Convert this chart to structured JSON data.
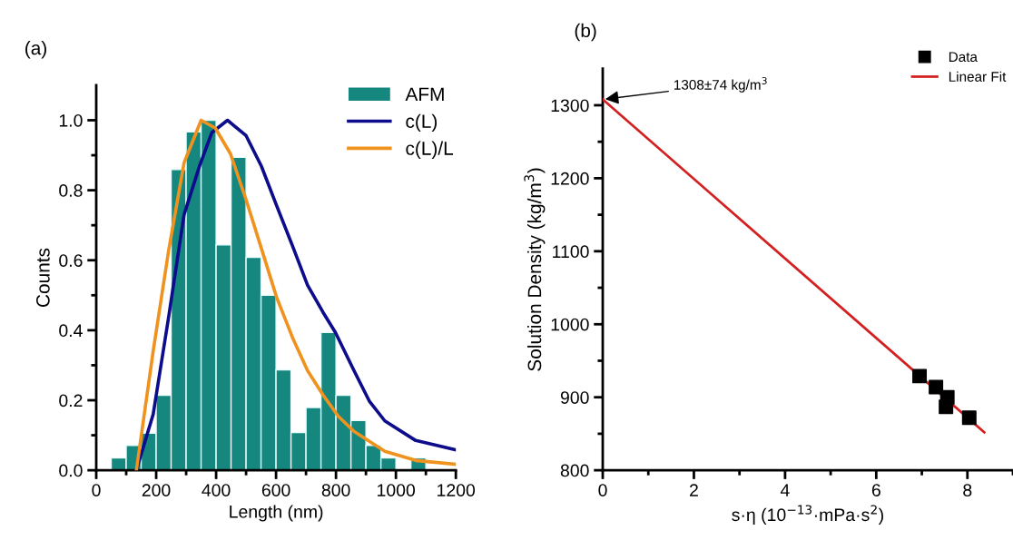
{
  "chart_data": [
    {
      "type": "histogram",
      "title": "(a)",
      "xlabel": "Length (nm)",
      "ylabel": "Counts",
      "bins": [
        50,
        100,
        150,
        200,
        250,
        300,
        350,
        400,
        450,
        500,
        550,
        600,
        650,
        700,
        750,
        800,
        850,
        900,
        950,
        1000,
        1050,
        1100
      ],
      "series": [
        {
          "name": "AFM",
          "color": "#16877f",
          "values": [
            0.035,
            0.071,
            0.106,
            0.214,
            0.859,
            0.967,
            1.0,
            0.644,
            0.894,
            0.608,
            0.5,
            0.287,
            0.108,
            0.179,
            0.394,
            0.214,
            0.142,
            0.071,
            0.035,
            0,
            0.035
          ]
        },
        {
          "name": "c(L)",
          "type": "line",
          "color": "#0c0c8c",
          "x": [
            134,
            190,
            242,
            293,
            345,
            386,
            438,
            500,
            551,
            602,
            654,
            705,
            757,
            798,
            860,
            911,
            963,
            1066,
            1200
          ],
          "values": [
            0,
            0.16,
            0.44,
            0.73,
            0.87,
            0.965,
            1.0,
            0.956,
            0.869,
            0.756,
            0.643,
            0.529,
            0.451,
            0.394,
            0.285,
            0.198,
            0.141,
            0.085,
            0.058
          ]
        },
        {
          "name": "c(L)/L",
          "type": "line",
          "color": "#f0921e",
          "x": [
            134,
            190,
            242,
            293,
            350,
            397,
            448,
            500,
            551,
            602,
            654,
            705,
            757,
            808,
            860,
            963,
            1066,
            1200
          ],
          "values": [
            0,
            0.34,
            0.63,
            0.878,
            1.0,
            0.978,
            0.904,
            0.773,
            0.634,
            0.494,
            0.381,
            0.285,
            0.215,
            0.154,
            0.111,
            0.054,
            0.028,
            0.017
          ]
        }
      ],
      "xlim": [
        0,
        1200
      ],
      "xticks": [
        0,
        {
          "value": 100,
          "label": null
        },
        200,
        {
          "value": 300,
          "label": null
        },
        400,
        {
          "value": 500,
          "label": null
        },
        600,
        {
          "value": 700,
          "label": null
        },
        800,
        {
          "value": 900,
          "label": null
        },
        1000,
        {
          "value": 1100,
          "label": null
        },
        1200
      ],
      "ylim": [
        0,
        1.1
      ],
      "yticks": [
        "0.0",
        {
          "value": 0.1,
          "label": null
        },
        {
          "value": 0.2,
          "label": "0.2"
        },
        {
          "value": 0.3,
          "label": null
        },
        {
          "value": 0.4,
          "label": "0.4"
        },
        {
          "value": 0.5,
          "label": null
        },
        {
          "value": 0.6,
          "label": "0.6"
        },
        {
          "value": 0.7,
          "label": null
        },
        {
          "value": 0.8,
          "label": "0.8"
        },
        {
          "value": 0.9,
          "label": null
        },
        {
          "value": 1.0,
          "label": "1.0"
        }
      ],
      "legend": "top right",
      "grid": false
    },
    {
      "type": "scatter",
      "title": "(b)",
      "xlabel": "s·η (10$^{−13}$·mPa·s$^{2}$)",
      "ylabel": "Solution Density (kg/m$^{3}$)",
      "series": [
        {
          "name": "Data",
          "color": "#000000",
          "marker": "square",
          "x": [
            6.95,
            7.31,
            7.56,
            7.53,
            8.04
          ],
          "values": [
            929,
            914,
            900,
            887,
            872
          ]
        },
        {
          "name": "Linear Fit",
          "type": "line",
          "color": "#d42020",
          "x": [
            0,
            8.37
          ],
          "values": [
            1308,
            852
          ]
        }
      ],
      "annotations": [
        {
          "text": "1308±74 kg/m$^{3}$",
          "x": 0,
          "y": 1308
        }
      ],
      "xlim": [
        0,
        9
      ],
      "xticks": [
        0,
        {
          "value": 1,
          "label": null
        },
        2,
        {
          "value": 3,
          "label": null
        },
        4,
        {
          "value": 5,
          "label": null
        },
        6,
        {
          "value": 7,
          "label": null
        },
        8,
        {
          "value": 9,
          "label": null
        }
      ],
      "ylim": [
        800,
        1350
      ],
      "yticks": [
        800,
        {
          "value": 850,
          "label": null
        },
        900,
        {
          "value": 950,
          "label": null
        },
        1000,
        {
          "value": 1050,
          "label": null
        },
        1100,
        {
          "value": 1150,
          "label": null
        },
        1200,
        {
          "value": 1250,
          "label": null
        },
        1300
      ],
      "legend": "top right",
      "grid": false
    }
  ]
}
